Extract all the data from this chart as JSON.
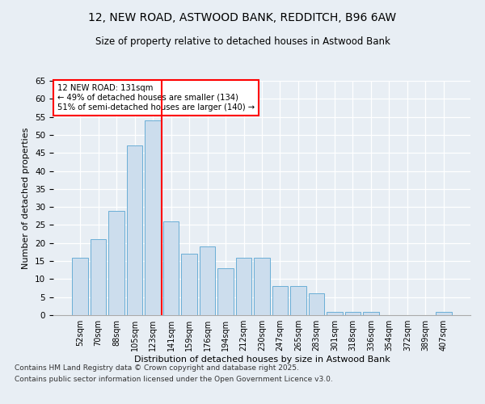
{
  "title1": "12, NEW ROAD, ASTWOOD BANK, REDDITCH, B96 6AW",
  "title2": "Size of property relative to detached houses in Astwood Bank",
  "xlabel": "Distribution of detached houses by size in Astwood Bank",
  "ylabel": "Number of detached properties",
  "categories": [
    "52sqm",
    "70sqm",
    "88sqm",
    "105sqm",
    "123sqm",
    "141sqm",
    "159sqm",
    "176sqm",
    "194sqm",
    "212sqm",
    "230sqm",
    "247sqm",
    "265sqm",
    "283sqm",
    "301sqm",
    "318sqm",
    "336sqm",
    "354sqm",
    "372sqm",
    "389sqm",
    "407sqm"
  ],
  "values": [
    16,
    21,
    29,
    47,
    54,
    26,
    17,
    19,
    13,
    16,
    16,
    8,
    8,
    6,
    1,
    1,
    1,
    0,
    0,
    0,
    1
  ],
  "bar_color": "#ccdded",
  "bar_edge_color": "#6aaed6",
  "vline_x": 5.0,
  "vline_color": "red",
  "annotation_line1": "12 NEW ROAD: 131sqm",
  "annotation_line2": "← 49% of detached houses are smaller (134)",
  "annotation_line3": "51% of semi-detached houses are larger (140) →",
  "annotation_box_color": "red",
  "ylim": [
    0,
    65
  ],
  "yticks": [
    0,
    5,
    10,
    15,
    20,
    25,
    30,
    35,
    40,
    45,
    50,
    55,
    60,
    65
  ],
  "footnote1": "Contains HM Land Registry data © Crown copyright and database right 2025.",
  "footnote2": "Contains public sector information licensed under the Open Government Licence v3.0.",
  "fig_bg_color": "#e8eef4",
  "plot_bg_color": "#e8eef4"
}
